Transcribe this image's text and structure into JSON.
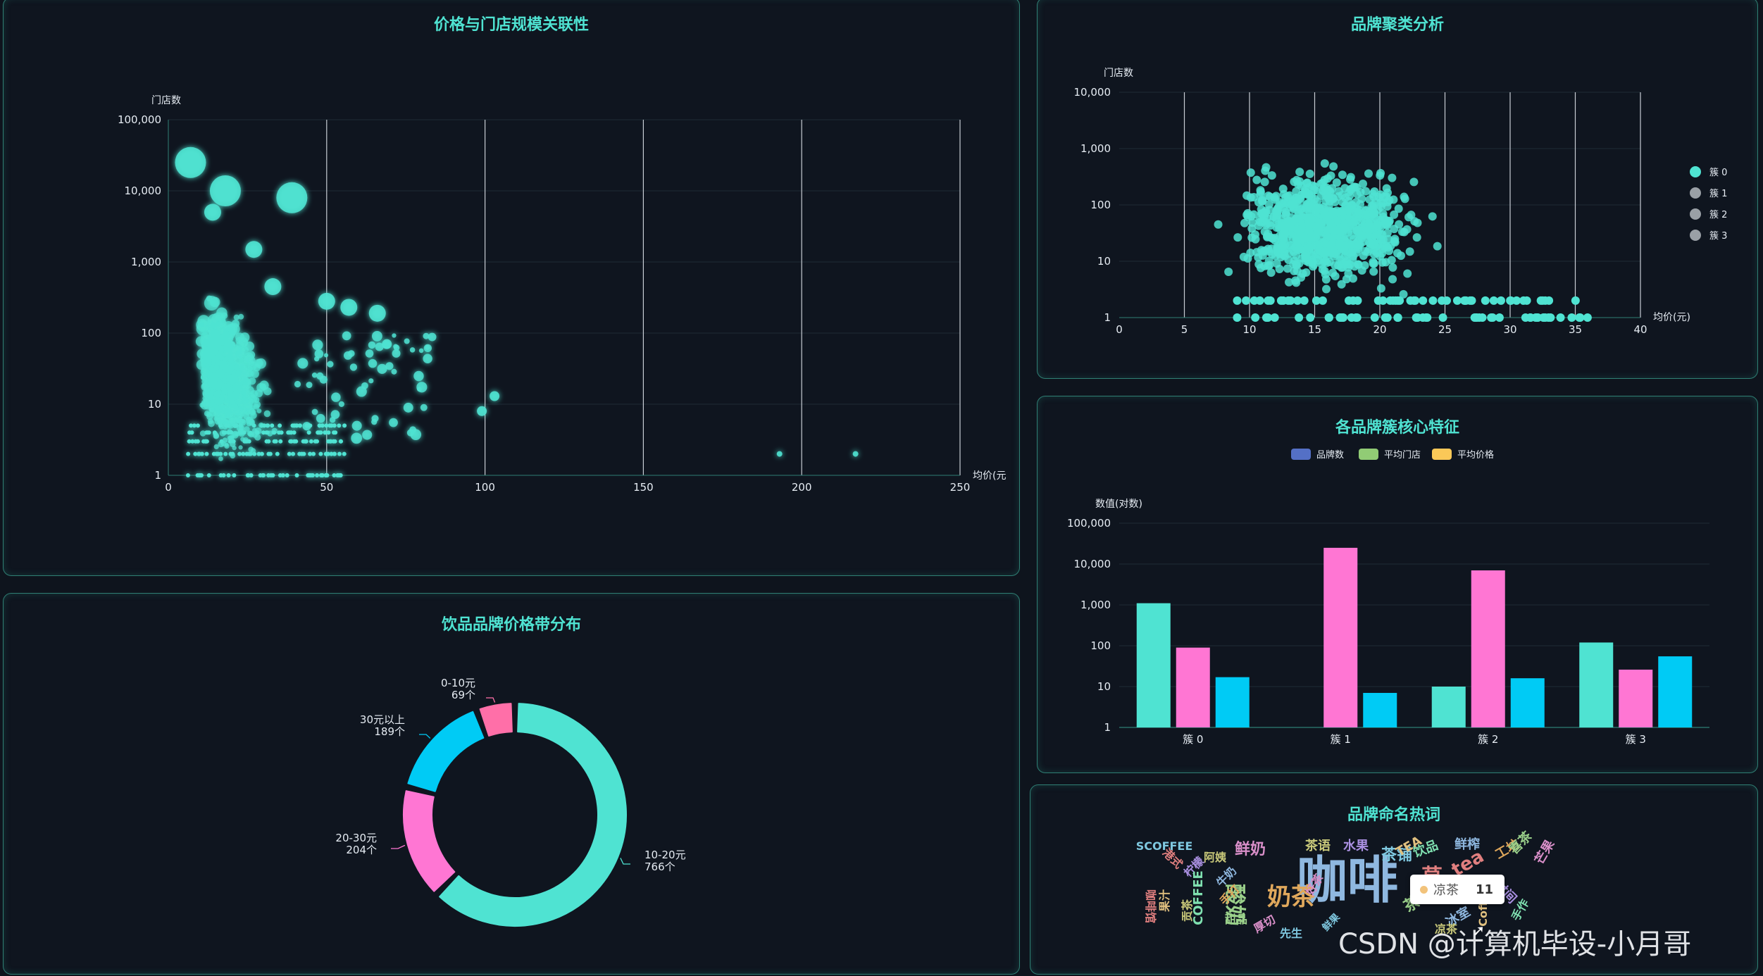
{
  "panels": {
    "scatter_title": "价格与门店规模关联性",
    "donut_title": "饮品品牌价格带分布",
    "cluster_title": "品牌聚类分析",
    "bar_title": "各品牌簇核心特征",
    "cloud_title": "品牌命名热词"
  },
  "colors": {
    "teal": "#4fe3d2",
    "pink": "#ff76d3",
    "cyan": "#00cbf5",
    "grey": "#9aa0a6",
    "legend_blue": "#5470c6",
    "legend_green": "#91cc75",
    "legend_yellow": "#fac858"
  },
  "chart_data": [
    {
      "type": "scatter",
      "title": "价格与门店规模关联性",
      "xlabel": "均价(元",
      "ylabel": "门店数",
      "xlim": [
        0,
        250
      ],
      "ylim": [
        1,
        100000
      ],
      "yscale": "log",
      "xticks": [
        "0",
        "50",
        "100",
        "150",
        "200",
        "250"
      ],
      "yticks": [
        "1",
        "10",
        "100",
        "1,000",
        "10,000",
        "100,000"
      ],
      "notable_points": [
        {
          "x": 7,
          "y": 25000
        },
        {
          "x": 18,
          "y": 10000
        },
        {
          "x": 39,
          "y": 8000
        },
        {
          "x": 14,
          "y": 5000
        },
        {
          "x": 27,
          "y": 1500
        },
        {
          "x": 33,
          "y": 450
        },
        {
          "x": 50,
          "y": 280
        },
        {
          "x": 57,
          "y": 230
        },
        {
          "x": 66,
          "y": 190
        },
        {
          "x": 69,
          "y": 70
        },
        {
          "x": 103,
          "y": 13
        },
        {
          "x": 99,
          "y": 8
        },
        {
          "x": 193,
          "y": 2
        },
        {
          "x": 217,
          "y": 2
        }
      ]
    },
    {
      "type": "pie",
      "title": "饮品品牌价格带分布",
      "slices": [
        {
          "label": "10-20元",
          "value": 766,
          "value_label": "766个",
          "color": "#4fe3d2"
        },
        {
          "label": "20-30元",
          "value": 204,
          "value_label": "204个",
          "color": "#ff76d3"
        },
        {
          "label": "30元以上",
          "value": 189,
          "value_label": "189个",
          "color": "#00cbf5"
        },
        {
          "label": "0-10元",
          "value": 69,
          "value_label": "69个",
          "color": "#ff6fa8"
        }
      ]
    },
    {
      "type": "scatter",
      "title": "品牌聚类分析",
      "xlabel": "均价(元)",
      "ylabel": "门店数",
      "xlim": [
        0,
        40
      ],
      "ylim": [
        1,
        10000
      ],
      "yscale": "log",
      "xticks": [
        "0",
        "5",
        "10",
        "15",
        "20",
        "25",
        "30",
        "35",
        "40"
      ],
      "yticks": [
        "1",
        "10",
        "100",
        "1,000",
        "10,000"
      ],
      "legend": [
        "簇 0",
        "簇 1",
        "簇 2",
        "簇 3"
      ],
      "legend_position": "right"
    },
    {
      "type": "bar",
      "title": "各品牌簇核心特征",
      "ylabel": "数值(对数)",
      "yscale": "log",
      "ylim": [
        1,
        100000
      ],
      "yticks": [
        "1",
        "10",
        "100",
        "1,000",
        "10,000",
        "100,000"
      ],
      "categories": [
        "簇 0",
        "簇 1",
        "簇 2",
        "簇 3"
      ],
      "legend": [
        "品牌数",
        "平均门店",
        "平均价格"
      ],
      "series": [
        {
          "name": "品牌数",
          "values": [
            1100,
            1,
            10,
            120
          ]
        },
        {
          "name": "平均门店",
          "values": [
            90,
            25000,
            7000,
            26
          ]
        },
        {
          "name": "平均价格",
          "values": [
            17,
            7,
            16,
            55
          ]
        }
      ]
    }
  ],
  "wordcloud": {
    "words": [
      "咖啡",
      "奶茶",
      "酸奶",
      "鲜奶",
      "茶铺",
      "草",
      "茶语",
      "水果",
      "TEA",
      "饮品",
      "鲜榨",
      "工坊",
      "喜茶",
      "芒果",
      "SCOFFEE",
      "港式",
      "阿姨",
      "柠檬",
      "果汁",
      "COFFEE",
      "牛奶",
      "手打",
      "甜品",
      "厚切",
      "先生",
      "咖啡馆",
      "贡茶",
      "时间",
      "Coffee",
      "手作",
      "冰室",
      "一杯",
      "茶",
      "好茶",
      "鲜果",
      "tea",
      "凉茶"
    ],
    "tooltip_name": "凉茶",
    "tooltip_value": "11"
  },
  "watermark": "CSDN @计算机毕设-小月哥"
}
